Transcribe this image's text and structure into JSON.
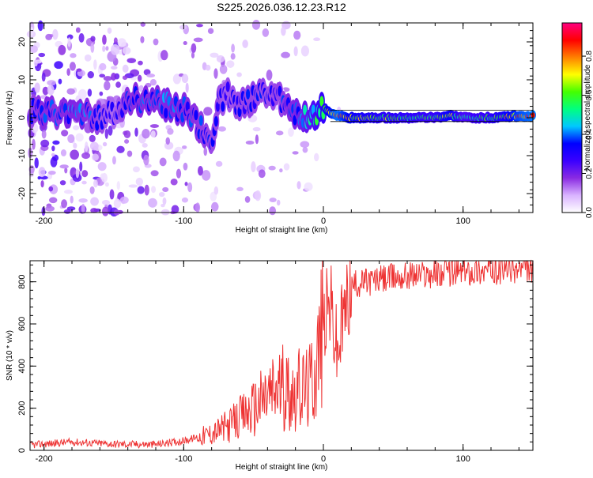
{
  "title": "S225.2026.036.12.23.R12",
  "chart_data": [
    {
      "type": "heatmap",
      "xlabel": "Height of straight line (km)",
      "ylabel": "Frequency (Hz)",
      "xlim": [
        -210,
        150
      ],
      "ylim": [
        -25,
        25
      ],
      "xticks": [
        -200,
        -100,
        0,
        100
      ],
      "yticks": [
        -20,
        -10,
        0,
        10,
        20
      ],
      "colorbar": {
        "label": "Normalized spectral amplitude",
        "range": [
          0,
          0.97
        ],
        "ticks": [
          0.0,
          0.2,
          0.4,
          0.6,
          0.8
        ],
        "tick_labels": [
          "0.0",
          "0.2",
          "0.4",
          "0.6",
          "0.8"
        ],
        "colors": [
          "#ffffff",
          "#d9b3ff",
          "#8a2be2",
          "#3a00ff",
          "#0000ff",
          "#00c8ff",
          "#00ff80",
          "#44ff00",
          "#ffff00",
          "#ff8000",
          "#ff0000",
          "#ff0080"
        ]
      },
      "ridge": [
        {
          "x": -210,
          "f": 2,
          "a": 0.35
        },
        {
          "x": -200,
          "f": 1,
          "a": 0.4
        },
        {
          "x": -190,
          "f": 1,
          "a": 0.38
        },
        {
          "x": -180,
          "f": 2,
          "a": 0.42
        },
        {
          "x": -170,
          "f": 1,
          "a": 0.4
        },
        {
          "x": -160,
          "f": 0,
          "a": 0.35
        },
        {
          "x": -150,
          "f": 1,
          "a": 0.3
        },
        {
          "x": -140,
          "f": 5,
          "a": 0.38
        },
        {
          "x": -130,
          "f": 5,
          "a": 0.4
        },
        {
          "x": -120,
          "f": 4,
          "a": 0.4
        },
        {
          "x": -110,
          "f": 3,
          "a": 0.42
        },
        {
          "x": -100,
          "f": 2,
          "a": 0.4
        },
        {
          "x": -90,
          "f": -2,
          "a": 0.38
        },
        {
          "x": -80,
          "f": -6,
          "a": 0.35
        },
        {
          "x": -75,
          "f": 4,
          "a": 0.35
        },
        {
          "x": -70,
          "f": 6,
          "a": 0.32
        },
        {
          "x": -60,
          "f": 4,
          "a": 0.35
        },
        {
          "x": -50,
          "f": 5,
          "a": 0.36
        },
        {
          "x": -40,
          "f": 7,
          "a": 0.34
        },
        {
          "x": -30,
          "f": 5,
          "a": 0.36
        },
        {
          "x": -20,
          "f": 1,
          "a": 0.42
        },
        {
          "x": -10,
          "f": 0,
          "a": 0.5
        },
        {
          "x": 0,
          "f": 3,
          "a": 0.62
        },
        {
          "x": 5,
          "f": 1,
          "a": 0.8
        },
        {
          "x": 10,
          "f": 0.5,
          "a": 0.9
        },
        {
          "x": 20,
          "f": 0,
          "a": 0.75
        },
        {
          "x": 40,
          "f": 0,
          "a": 0.65
        },
        {
          "x": 60,
          "f": 0,
          "a": 0.62
        },
        {
          "x": 80,
          "f": 0,
          "a": 0.6
        },
        {
          "x": 90,
          "f": 0.5,
          "a": 0.75
        },
        {
          "x": 100,
          "f": 0,
          "a": 0.55
        },
        {
          "x": 120,
          "f": 0,
          "a": 0.62
        },
        {
          "x": 140,
          "f": 0.5,
          "a": 0.85
        },
        {
          "x": 150,
          "f": 0.5,
          "a": 0.9
        }
      ]
    },
    {
      "type": "line",
      "xlabel": "Height of straight line (km)",
      "ylabel": "SNR (10 * v/v)",
      "xlim": [
        -210,
        150
      ],
      "ylim": [
        0,
        900
      ],
      "xticks": [
        -200,
        -100,
        0,
        100
      ],
      "yticks": [
        0,
        200,
        400,
        600,
        800
      ],
      "color": "#ee3333",
      "series": [
        {
          "name": "SNR",
          "x": [
            -210,
            -180,
            -150,
            -120,
            -100,
            -80,
            -70,
            -60,
            -50,
            -40,
            -30,
            -20,
            -10,
            -5,
            0,
            5,
            10,
            15,
            20,
            30,
            40,
            50,
            60,
            80,
            100,
            120,
            140,
            150
          ],
          "y": [
            25,
            40,
            30,
            28,
            45,
            80,
            110,
            150,
            200,
            260,
            300,
            280,
            300,
            420,
            600,
            700,
            450,
            650,
            780,
            800,
            810,
            820,
            830,
            840,
            850,
            855,
            860,
            860
          ]
        }
      ]
    }
  ]
}
